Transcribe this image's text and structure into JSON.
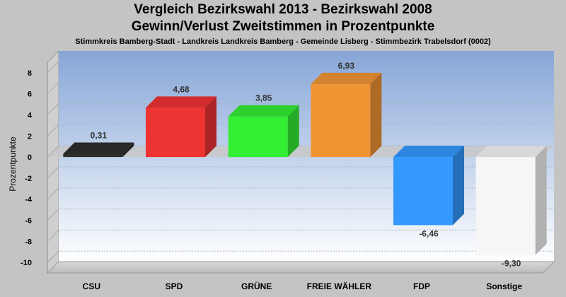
{
  "chart_data": {
    "type": "bar",
    "title": "Vergleich Bezirkswahl 2013 - Bezirkswahl 2008",
    "subtitle": "Gewinn/Verlust Zweitstimmen in Prozentpunkte",
    "caption": "Stimmkreis Bamberg-Stadt - Landkreis Landkreis Bamberg - Gemeinde Lisberg - Stimmbezirk Trabelsdorf (0002)",
    "ylabel": "Prozentpunkte",
    "ylim": [
      -11,
      9
    ],
    "yticks": [
      "8",
      "6",
      "4",
      "2",
      "0",
      "-2",
      "-4",
      "-6",
      "-8",
      "-10"
    ],
    "grid": true,
    "categories": [
      "CSU",
      "SPD",
      "GRÜNE",
      "FREIE WÄHLER",
      "FDP",
      "Sonstige"
    ],
    "values": [
      0.31,
      4.68,
      3.85,
      6.93,
      -6.46,
      -9.3
    ],
    "value_labels": [
      "0,31",
      "4,68",
      "3,85",
      "6,93",
      "-6,46",
      "-9,30"
    ],
    "colors": [
      "#2e2e2e",
      "#ee3333",
      "#33ee33",
      "#f09433",
      "#3399ff",
      "#f6f6f6"
    ]
  }
}
